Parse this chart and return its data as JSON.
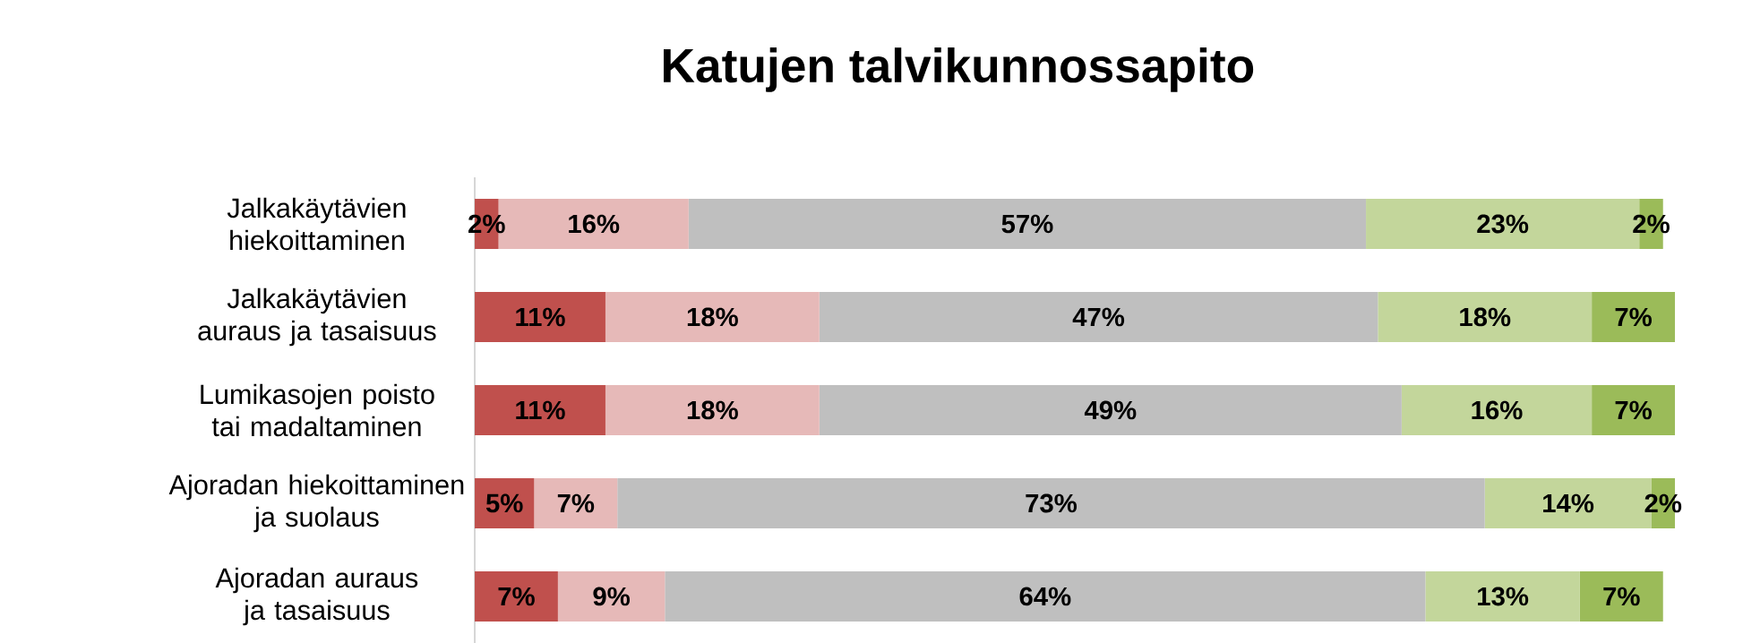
{
  "chart_data": {
    "type": "bar",
    "orientation": "horizontal",
    "stacked": true,
    "title": "Katujen talvikunnossapito",
    "categories": [
      "Jalkakäytävien hiekoittaminen",
      "Jalkakäytävien auraus ja tasaisuus",
      "Lumikasojen poisto tai madaltaminen",
      "Ajoradan hiekoittaminen ja suolaus",
      "Ajoradan auraus ja tasaisuus"
    ],
    "series": [
      {
        "color": "#c0504d",
        "values": [
          2,
          11,
          11,
          5,
          7
        ],
        "value_labels": [
          "2%",
          "11%",
          "11%",
          "5%",
          "7%"
        ]
      },
      {
        "color": "#e6b9b8",
        "values": [
          16,
          18,
          18,
          7,
          9
        ],
        "value_labels": [
          "16%",
          "18%",
          "18%",
          "7%",
          "9%"
        ]
      },
      {
        "color": "#bfbfbf",
        "values": [
          57,
          47,
          49,
          73,
          64
        ],
        "value_labels": [
          "57%",
          "47%",
          "49%",
          "73%",
          "64%"
        ]
      },
      {
        "color": "#c3d69b",
        "values": [
          23,
          18,
          16,
          14,
          13
        ],
        "value_labels": [
          "23%",
          "18%",
          "16%",
          "14%",
          "13%"
        ]
      },
      {
        "color": "#9bbb59",
        "values": [
          2,
          7,
          7,
          2,
          7
        ],
        "value_labels": [
          "2%",
          "7%",
          "7%",
          "2%",
          "7%"
        ]
      }
    ],
    "tick_labels": "y"
  }
}
